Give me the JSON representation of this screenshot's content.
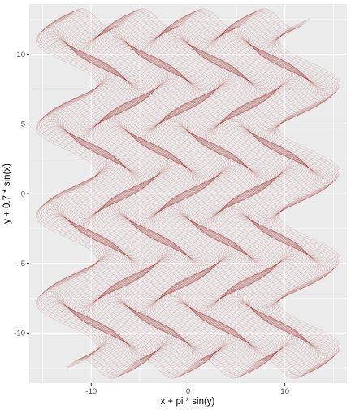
{
  "chart_data": {
    "type": "scatter",
    "title": "",
    "xlabel": "x + pi * sin(y)",
    "ylabel": "y + 0.7 * sin(x)",
    "xlim": [
      -16.4,
      16.4
    ],
    "ylim": [
      -13.6,
      13.6
    ],
    "x_ticks": [
      -10,
      0,
      10
    ],
    "x_tick_labels": [
      "-10",
      "0",
      "10"
    ],
    "y_ticks": [
      -10,
      -5,
      0,
      5,
      10
    ],
    "y_tick_labels": [
      "-10",
      "-5",
      "0",
      "5",
      "10"
    ],
    "grid": true,
    "legend": "none",
    "point_color": "#8b0000",
    "panel_background": "#ebebeb",
    "grid_color": "#ffffff",
    "x_source_range": [
      -12.566,
      12.566
    ],
    "y_source_range": [
      -12.566,
      12.566
    ],
    "point_alpha": 0.03,
    "mapping": "x' = x + pi*sin(y), y' = y + 0.7*sin(x)"
  }
}
